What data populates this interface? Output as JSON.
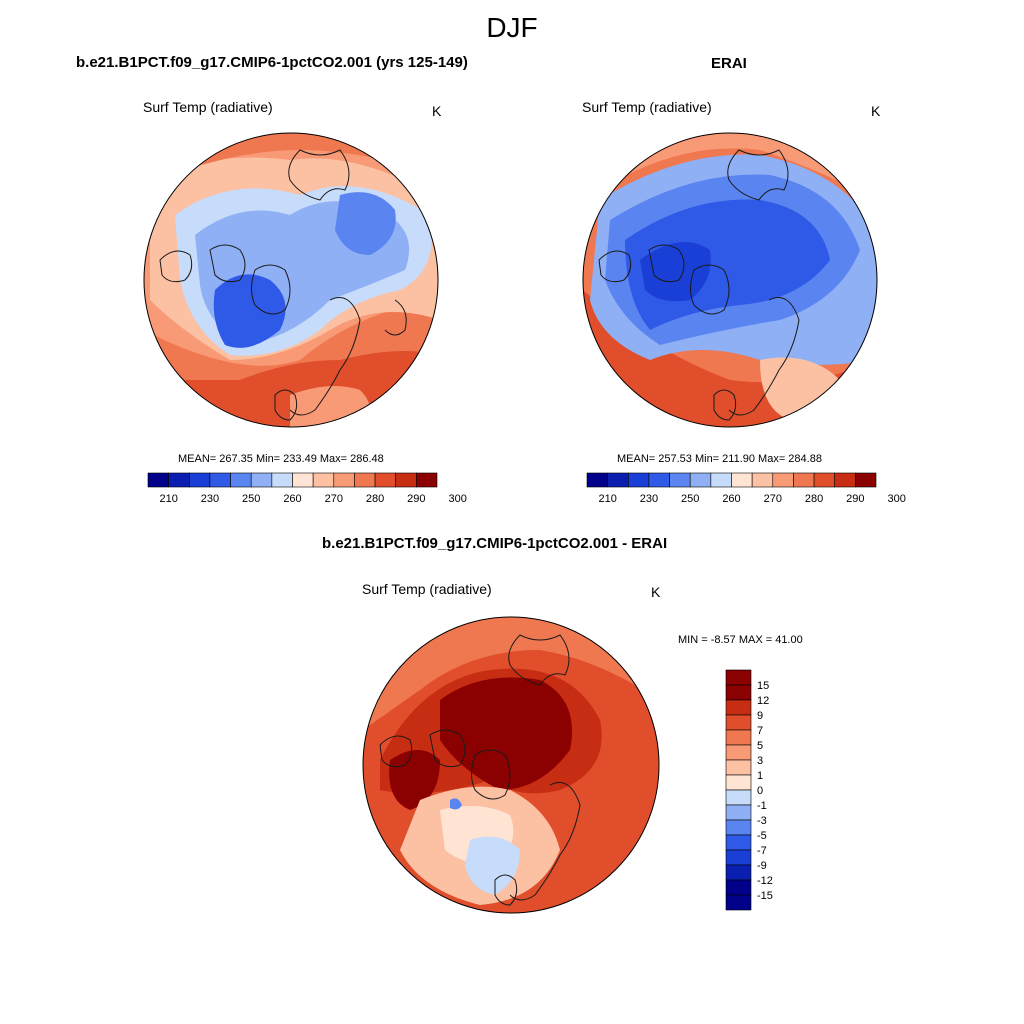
{
  "figure": {
    "title": "DJF"
  },
  "colors": {
    "coast": "#1a1a1a",
    "scale": [
      "#00008b",
      "#0a1fb0",
      "#1a3fd6",
      "#2f5ae8",
      "#5a85f0",
      "#8fb0f5",
      "#c7dbfa",
      "#ffe4d4",
      "#fcc0a3",
      "#f99a77",
      "#f07850",
      "#e04e2c",
      "#c72d12",
      "#8b0000"
    ]
  },
  "chart_data": [
    {
      "type": "heatmap",
      "projection": "north-polar-stereographic",
      "title": "b.e21.B1PCT.f09_g17.CMIP6-1pctCO2.001 (yrs 125-149)",
      "variable": "Surf Temp (radiative)",
      "units": "K",
      "stats": {
        "mean": "267.35",
        "min": "233.49",
        "max": "286.48",
        "text": "MEAN= 267.35  Min= 233.49  Max= 286.48"
      },
      "colorbar": {
        "orientation": "horizontal",
        "levels": [
          205,
          210,
          220,
          230,
          240,
          250,
          255,
          260,
          265,
          270,
          275,
          280,
          285,
          290,
          295,
          300
        ],
        "labels": [
          "210",
          "230",
          "250",
          "260",
          "270",
          "280",
          "290",
          "300"
        ]
      }
    },
    {
      "type": "heatmap",
      "projection": "north-polar-stereographic",
      "title": "ERAI",
      "variable": "Surf Temp (radiative)",
      "units": "K",
      "stats": {
        "mean": "257.53",
        "min": "211.90",
        "max": "284.88",
        "text": "MEAN= 257.53  Min= 211.90  Max= 284.88"
      },
      "colorbar": {
        "orientation": "horizontal",
        "levels": [
          205,
          210,
          220,
          230,
          240,
          250,
          255,
          260,
          265,
          270,
          275,
          280,
          285,
          290,
          295,
          300
        ],
        "labels": [
          "210",
          "230",
          "250",
          "260",
          "270",
          "280",
          "290",
          "300"
        ]
      }
    },
    {
      "type": "heatmap",
      "projection": "north-polar-stereographic",
      "title": "b.e21.B1PCT.f09_g17.CMIP6-1pctCO2.001 - ERAI",
      "variable": "Surf Temp (radiative)",
      "units": "K",
      "stats": {
        "min": "-8.57",
        "max": "41.00",
        "text": "MIN =  -8.57 MAX =  41.00"
      },
      "colorbar": {
        "orientation": "vertical",
        "levels": [
          -15,
          -12,
          -9,
          -7,
          -5,
          -3,
          -1,
          0,
          1,
          3,
          5,
          7,
          9,
          12,
          15
        ],
        "labels": [
          "15",
          "12",
          "9",
          "7",
          "5",
          "3",
          "1",
          "0",
          "-1",
          "-3",
          "-5",
          "-7",
          "-9",
          "-12",
          "-15"
        ]
      }
    }
  ]
}
